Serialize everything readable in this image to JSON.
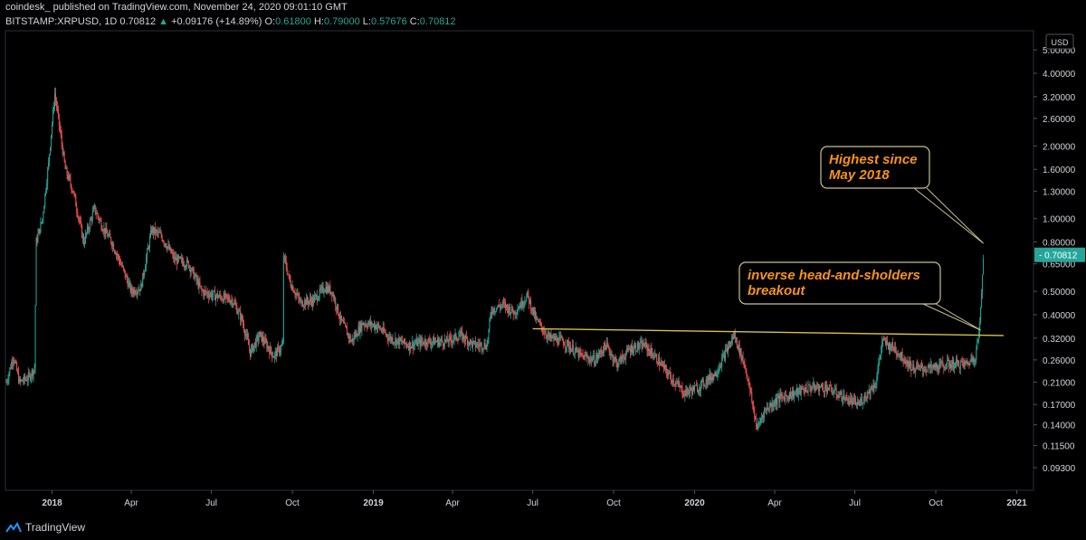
{
  "header": {
    "publisher": "coindesk_",
    "published_text": "published on TradingView.com, November 24, 2020 09:01:10 GMT",
    "symbol": "BITSTAMP:XRPUSD, 1D",
    "last": "0.70812",
    "change_arrow": "▲",
    "change": "+0.09176 (+14.89%)",
    "o_label": "O:",
    "o_value": "0.61800",
    "h_label": "H:",
    "h_value": "0.79000",
    "l_label": "L:",
    "l_value": "0.57676",
    "c_label": "C:",
    "c_value": "0.70812"
  },
  "footer": {
    "brand": "TradingView",
    "brand_icon": "tradingview-logo-icon"
  },
  "colors": {
    "up": "#26a69a",
    "down": "#ef5350",
    "trendline": "#d4c14a",
    "annotation_text": "#f7931a",
    "price_tag": "#26a69a"
  },
  "chart_data": {
    "type": "candlestick",
    "scale": "log",
    "currency_label": "USD",
    "y_ticks": [
      "5.00000",
      "4.00000",
      "3.20000",
      "2.60000",
      "2.00000",
      "1.60000",
      "1.30000",
      "1.00000",
      "0.80000",
      "0.65000",
      "0.50000",
      "0.40000",
      "0.32000",
      "0.26000",
      "0.21000",
      "0.17000",
      "0.14000",
      "0.11500",
      "0.09300"
    ],
    "x_ticks": [
      "2018",
      "Apr",
      "Jul",
      "Oct",
      "2019",
      "Apr",
      "Jul",
      "Oct",
      "2020",
      "Apr",
      "Jul",
      "Oct",
      "2021"
    ],
    "x_range": [
      "2017-11-09",
      "2021-01-20"
    ],
    "current_price": "0.70812",
    "price_path": [
      [
        "2017-11-10",
        0.21
      ],
      [
        "2017-11-18",
        0.27
      ],
      [
        "2017-11-25",
        0.21
      ],
      [
        "2017-12-05",
        0.22
      ],
      [
        "2017-12-12",
        0.24
      ],
      [
        "2017-12-14",
        0.8
      ],
      [
        "2017-12-21",
        1.0
      ],
      [
        "2017-12-28",
        1.7
      ],
      [
        "2018-01-04",
        3.3
      ],
      [
        "2018-01-08",
        2.6
      ],
      [
        "2018-01-16",
        1.6
      ],
      [
        "2018-01-25",
        1.3
      ],
      [
        "2018-02-06",
        0.8
      ],
      [
        "2018-02-18",
        1.1
      ],
      [
        "2018-03-01",
        0.9
      ],
      [
        "2018-03-10",
        0.8
      ],
      [
        "2018-03-20",
        0.65
      ],
      [
        "2018-04-01",
        0.5
      ],
      [
        "2018-04-12",
        0.52
      ],
      [
        "2018-04-24",
        0.9
      ],
      [
        "2018-05-05",
        0.85
      ],
      [
        "2018-05-20",
        0.68
      ],
      [
        "2018-06-05",
        0.65
      ],
      [
        "2018-06-20",
        0.5
      ],
      [
        "2018-07-05",
        0.48
      ],
      [
        "2018-07-25",
        0.46
      ],
      [
        "2018-08-05",
        0.38
      ],
      [
        "2018-08-14",
        0.28
      ],
      [
        "2018-08-25",
        0.33
      ],
      [
        "2018-09-10",
        0.27
      ],
      [
        "2018-09-20",
        0.3
      ],
      [
        "2018-09-21",
        0.7
      ],
      [
        "2018-09-28",
        0.55
      ],
      [
        "2018-10-10",
        0.45
      ],
      [
        "2018-10-25",
        0.46
      ],
      [
        "2018-11-07",
        0.52
      ],
      [
        "2018-11-15",
        0.5
      ],
      [
        "2018-11-25",
        0.38
      ],
      [
        "2018-12-07",
        0.31
      ],
      [
        "2018-12-20",
        0.37
      ],
      [
        "2019-01-05",
        0.36
      ],
      [
        "2019-01-20",
        0.32
      ],
      [
        "2019-02-10",
        0.3
      ],
      [
        "2019-03-01",
        0.31
      ],
      [
        "2019-03-25",
        0.31
      ],
      [
        "2019-04-10",
        0.33
      ],
      [
        "2019-04-25",
        0.3
      ],
      [
        "2019-05-10",
        0.3
      ],
      [
        "2019-05-15",
        0.42
      ],
      [
        "2019-05-28",
        0.44
      ],
      [
        "2019-06-10",
        0.41
      ],
      [
        "2019-06-25",
        0.48
      ],
      [
        "2019-07-05",
        0.38
      ],
      [
        "2019-07-20",
        0.32
      ],
      [
        "2019-08-05",
        0.31
      ],
      [
        "2019-08-25",
        0.27
      ],
      [
        "2019-09-10",
        0.26
      ],
      [
        "2019-09-22",
        0.3
      ],
      [
        "2019-10-05",
        0.25
      ],
      [
        "2019-10-20",
        0.29
      ],
      [
        "2019-11-05",
        0.3
      ],
      [
        "2019-11-20",
        0.26
      ],
      [
        "2019-12-05",
        0.22
      ],
      [
        "2019-12-20",
        0.19
      ],
      [
        "2020-01-05",
        0.2
      ],
      [
        "2020-01-25",
        0.23
      ],
      [
        "2020-02-15",
        0.33
      ],
      [
        "2020-02-28",
        0.24
      ],
      [
        "2020-03-12",
        0.135
      ],
      [
        "2020-03-20",
        0.16
      ],
      [
        "2020-04-05",
        0.18
      ],
      [
        "2020-04-25",
        0.19
      ],
      [
        "2020-05-10",
        0.2
      ],
      [
        "2020-05-30",
        0.2
      ],
      [
        "2020-06-20",
        0.18
      ],
      [
        "2020-07-05",
        0.17
      ],
      [
        "2020-07-25",
        0.21
      ],
      [
        "2020-08-01",
        0.31
      ],
      [
        "2020-08-15",
        0.29
      ],
      [
        "2020-09-05",
        0.24
      ],
      [
        "2020-09-25",
        0.24
      ],
      [
        "2020-10-15",
        0.25
      ],
      [
        "2020-11-05",
        0.25
      ],
      [
        "2020-11-15",
        0.27
      ],
      [
        "2020-11-20",
        0.36
      ],
      [
        "2020-11-22",
        0.5
      ],
      [
        "2020-11-24",
        0.708
      ]
    ],
    "candle_anchors": [
      "2017-11-09",
      "2021-01-20"
    ],
    "trendline": {
      "from": [
        "2019-07-01",
        0.35
      ],
      "to": [
        "2020-12-17",
        0.328
      ]
    },
    "annotations": [
      {
        "text": [
          "Highest since",
          "May 2018"
        ],
        "target": [
          "2020-11-24",
          0.79
        ]
      },
      {
        "text": [
          "inverse head-and-sholders",
          "breakout"
        ],
        "target": [
          "2020-11-21",
          0.345
        ]
      }
    ]
  }
}
